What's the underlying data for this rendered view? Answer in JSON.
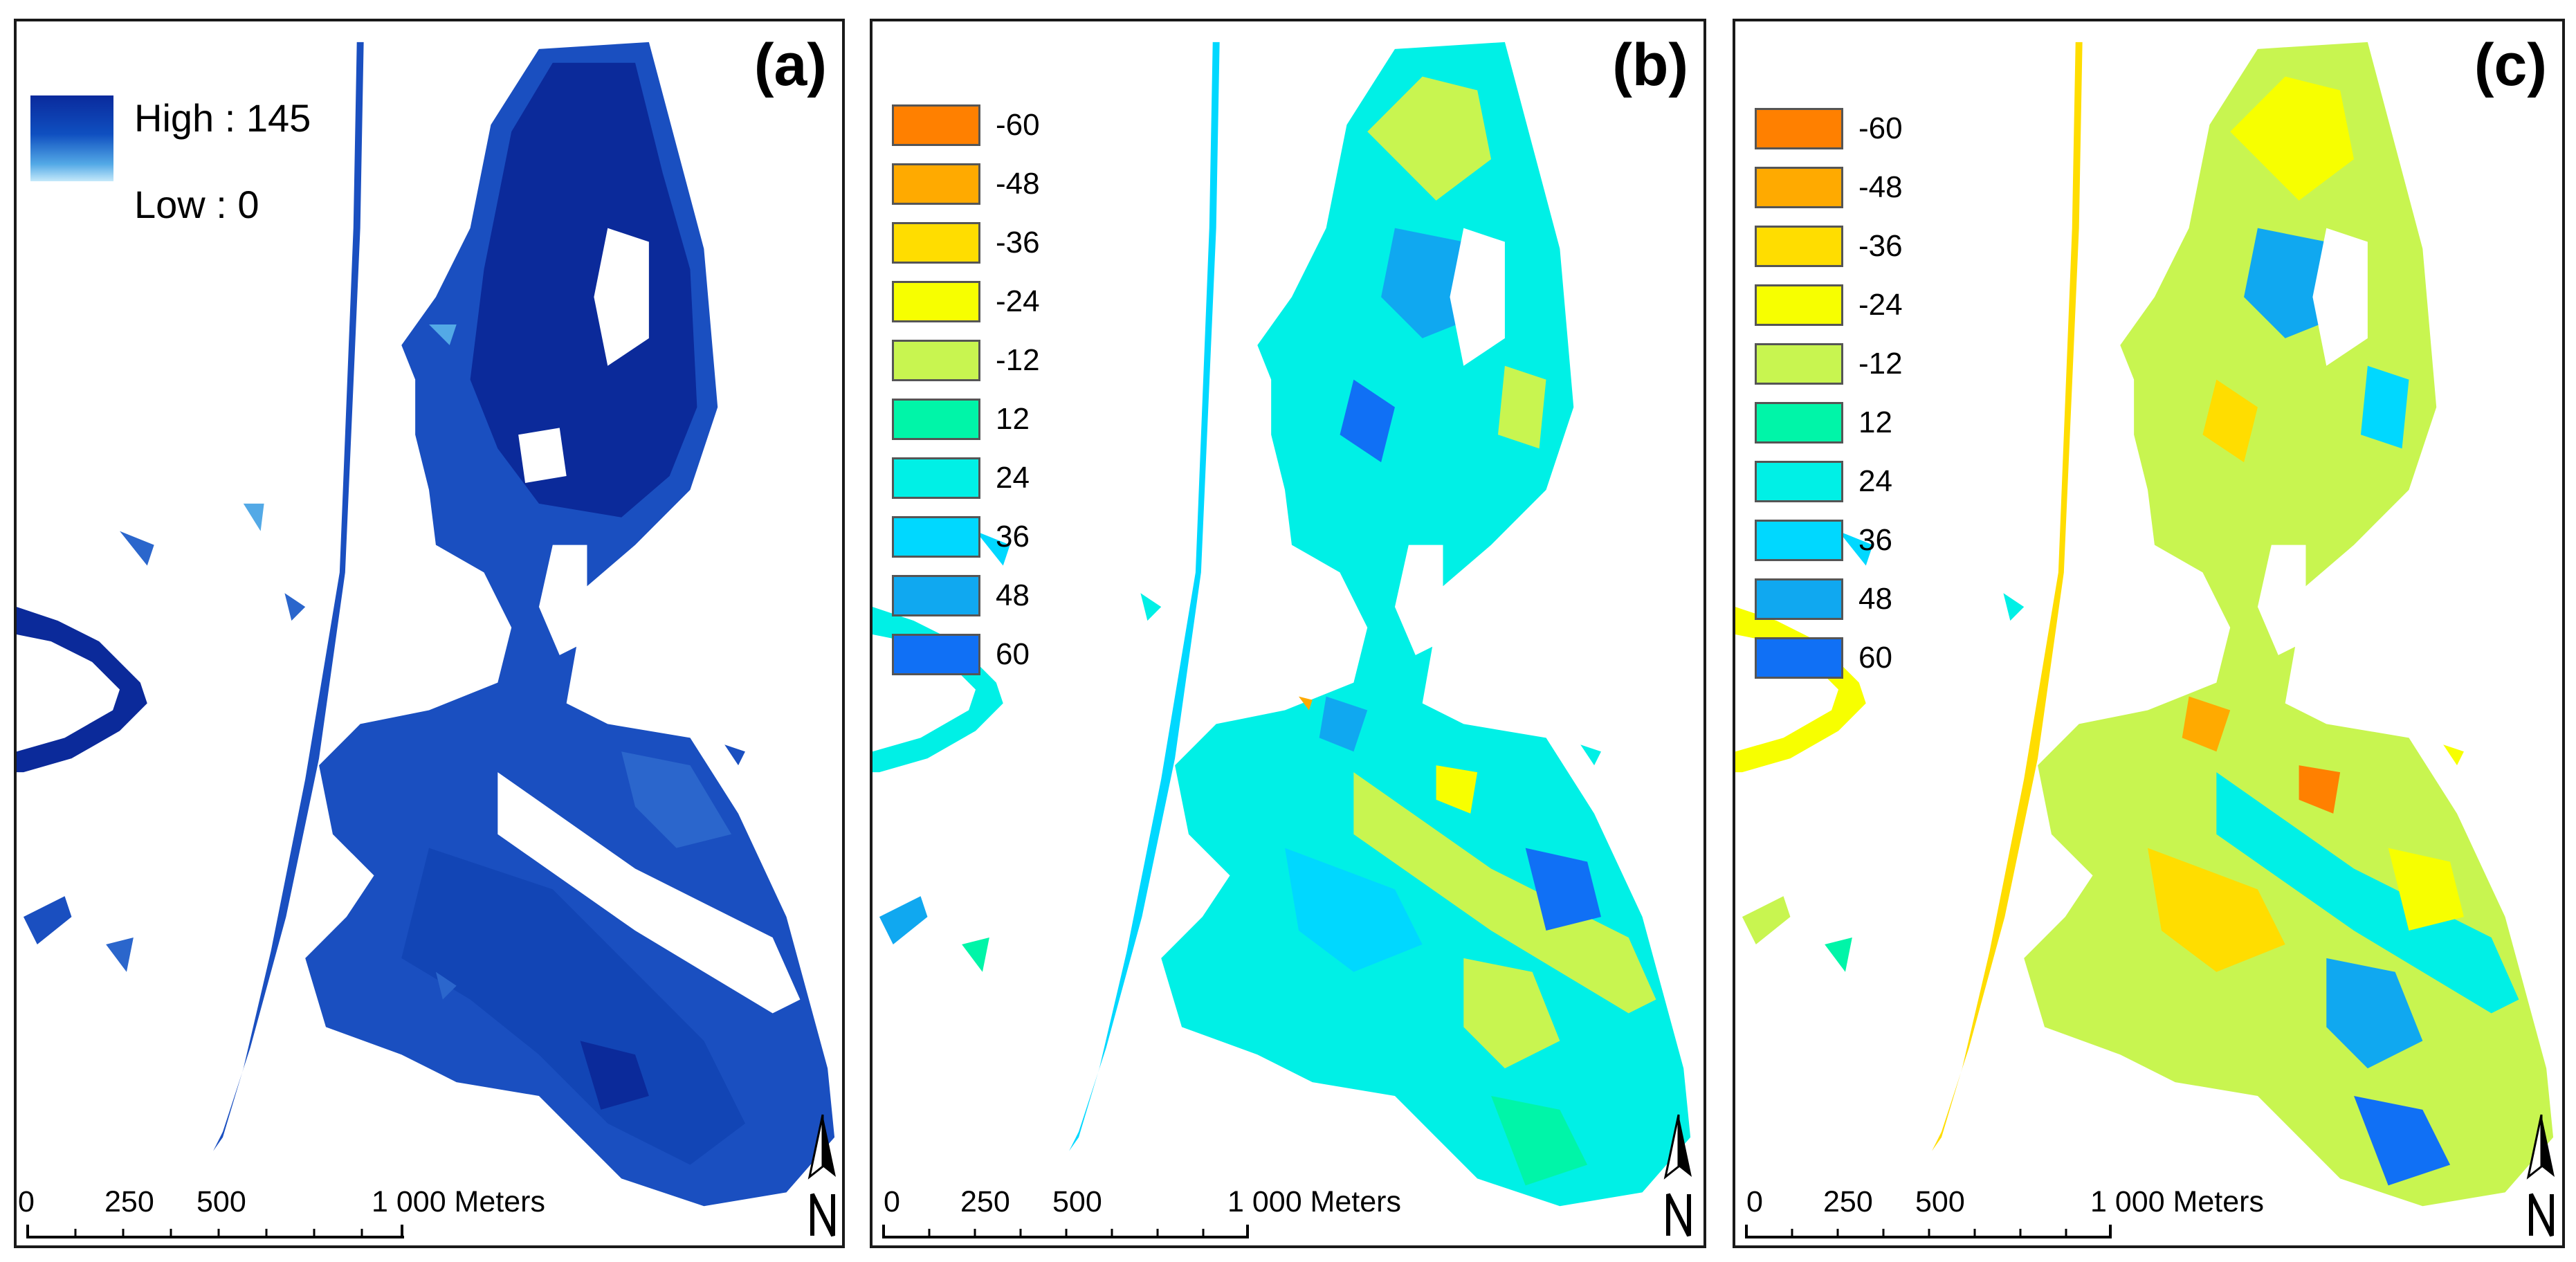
{
  "figure": {
    "panels": [
      {
        "label": "(a)"
      },
      {
        "label": "(b)"
      },
      {
        "label": "(c)"
      }
    ]
  },
  "legend_a": {
    "high": "High : 145",
    "low": "Low : 0",
    "colors": {
      "high": "#0a2a9c",
      "low": "#c4e9fa"
    }
  },
  "legend_classes": [
    {
      "label": "-60",
      "color": "#ff8000"
    },
    {
      "label": "-48",
      "color": "#ffaa00"
    },
    {
      "label": "-36",
      "color": "#ffdd00"
    },
    {
      "label": "-24",
      "color": "#f7ff00"
    },
    {
      "label": "-12",
      "color": "#c8f550"
    },
    {
      "label": "12",
      "color": "#00f5a8"
    },
    {
      "label": "24",
      "color": "#00f0e6"
    },
    {
      "label": "36",
      "color": "#00d8ff"
    },
    {
      "label": "48",
      "color": "#10a8f0"
    },
    {
      "label": "60",
      "color": "#1070f5"
    }
  ],
  "scalebar": {
    "labels": [
      "0",
      "250",
      "500",
      "1 000 Meters"
    ]
  },
  "north_arrow": {
    "letter": "N"
  }
}
